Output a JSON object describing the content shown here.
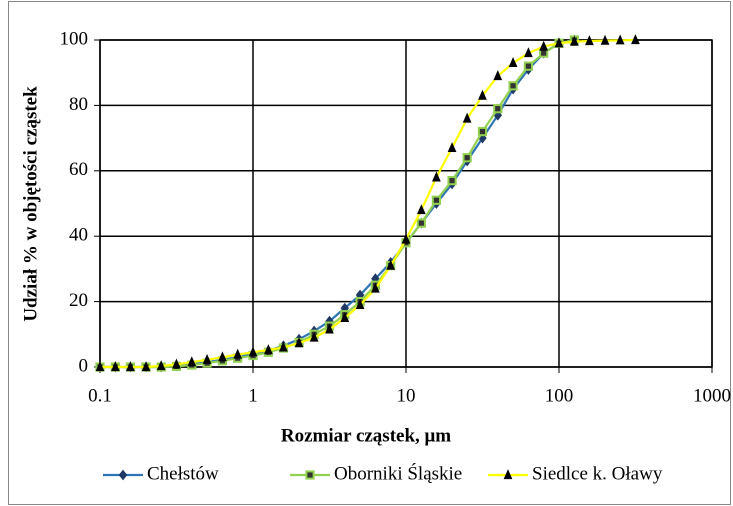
{
  "chart_data": {
    "type": "line",
    "xlabel": "Rozmiar cząstek, μm",
    "ylabel": "Udział % w objętości cząstek",
    "xscale": "log",
    "xlim": [
      0.1,
      1000
    ],
    "xticks": [
      0.1,
      1,
      10,
      100,
      1000
    ],
    "ylim": [
      0,
      100
    ],
    "yticks": [
      0,
      20,
      40,
      60,
      80,
      100
    ],
    "grid": true,
    "legend": "bottom",
    "series": [
      {
        "name": "Chełstów",
        "color": "#2e75b6",
        "marker": "diamond",
        "x": [
          0.1,
          0.126,
          0.158,
          0.2,
          0.251,
          0.316,
          0.398,
          0.501,
          0.631,
          0.794,
          1,
          1.26,
          1.58,
          2,
          2.51,
          3.16,
          3.98,
          5.01,
          6.31,
          7.94,
          10,
          12.6,
          15.8,
          20,
          25.1,
          31.6,
          39.8,
          50.1,
          63.1,
          79.4,
          100,
          126
        ],
        "values": [
          0,
          0,
          0,
          0,
          0,
          0.3,
          0.8,
          1.5,
          2.2,
          3,
          4,
          5,
          6.5,
          8.5,
          11,
          14,
          18,
          22,
          27,
          32,
          38,
          44,
          50,
          56,
          63,
          70,
          77,
          85,
          91,
          96,
          99,
          100
        ]
      },
      {
        "name": "Oborniki Śląskie",
        "color": "#92d050",
        "marker": "square",
        "x": [
          0.1,
          0.126,
          0.158,
          0.2,
          0.251,
          0.316,
          0.398,
          0.501,
          0.631,
          0.794,
          1,
          1.26,
          1.58,
          2,
          2.51,
          3.16,
          3.98,
          5.01,
          6.31,
          7.94,
          10,
          12.6,
          15.8,
          20,
          25.1,
          31.6,
          39.8,
          50.1,
          63.1,
          79.4,
          100,
          126
        ],
        "values": [
          0,
          0,
          0,
          0,
          0,
          0.2,
          0.6,
          1.2,
          1.9,
          2.7,
          3.5,
          4.5,
          5.8,
          7.5,
          10,
          12.5,
          16,
          20,
          25,
          31,
          38,
          44,
          51,
          57,
          64,
          72,
          79,
          86,
          92,
          96,
          99,
          100
        ]
      },
      {
        "name": "Siedlce k. Oławy",
        "color": "#ffff00",
        "marker": "triangle",
        "x": [
          0.1,
          0.126,
          0.158,
          0.2,
          0.251,
          0.316,
          0.398,
          0.501,
          0.631,
          0.794,
          1,
          1.26,
          1.58,
          2,
          2.51,
          3.16,
          3.98,
          5.01,
          6.31,
          7.94,
          10,
          12.6,
          15.8,
          20,
          25.1,
          31.6,
          39.8,
          50.1,
          63.1,
          79.4,
          100,
          126,
          158,
          200,
          251,
          316
        ],
        "values": [
          0,
          0,
          0,
          0,
          0.3,
          0.8,
          1.5,
          2.2,
          3,
          3.8,
          4.5,
          5.2,
          6,
          7.3,
          9,
          11.5,
          15,
          19,
          24,
          31,
          39,
          48,
          58,
          67,
          76,
          83,
          89,
          93,
          96,
          98,
          99,
          99.5,
          99.7,
          99.8,
          99.9,
          100
        ]
      }
    ]
  }
}
